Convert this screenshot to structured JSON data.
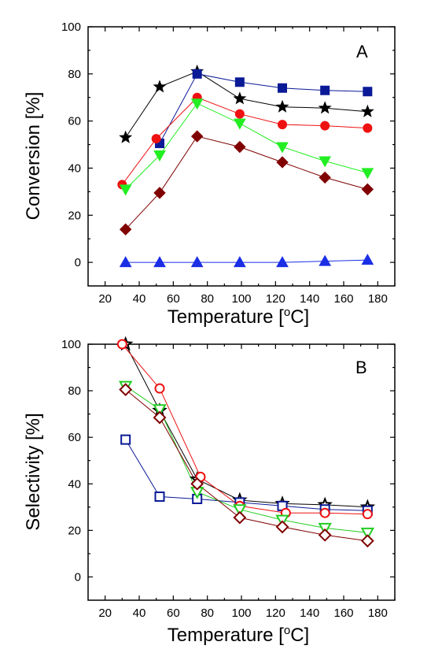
{
  "chart_data": [
    {
      "type": "line",
      "panel_label": "A",
      "xlabel": "Temperature [°C]",
      "xlabel_parts": {
        "pre": "Temperature [",
        "sup": "o",
        "post": "C]"
      },
      "ylabel": "Conversion [%]",
      "xlim": [
        10,
        190
      ],
      "ylim": [
        -10,
        100
      ],
      "xticks": [
        20,
        40,
        60,
        80,
        100,
        120,
        140,
        160,
        180
      ],
      "yticks": [
        0,
        20,
        40,
        60,
        80,
        100
      ],
      "grid": false,
      "series": [
        {
          "marker": "star",
          "color": "#000000",
          "filled": true,
          "points": [
            [
              32,
              53
            ],
            [
              52,
              74.5
            ],
            [
              74,
              81
            ],
            [
              99,
              69.5
            ],
            [
              124,
              66
            ],
            [
              149,
              65.5
            ],
            [
              174,
              64
            ]
          ]
        },
        {
          "marker": "square",
          "color": "#0a1a96",
          "filled": true,
          "points": [
            [
              52,
              50.5
            ],
            [
              74,
              80
            ],
            [
              99,
              76.5
            ],
            [
              124,
              74
            ],
            [
              149,
              73
            ],
            [
              174,
              72.5
            ]
          ]
        },
        {
          "marker": "circle",
          "color": "#ee1111",
          "filled": true,
          "points": [
            [
              30,
              33
            ],
            [
              50,
              52.5
            ],
            [
              74,
              70
            ],
            [
              99,
              63
            ],
            [
              124,
              58.5
            ],
            [
              149,
              58
            ],
            [
              174,
              57
            ]
          ]
        },
        {
          "marker": "triangle-down",
          "color": "#22ee22",
          "filled": true,
          "points": [
            [
              32,
              31
            ],
            [
              52,
              45.5
            ],
            [
              74,
              67.5
            ],
            [
              99,
              59
            ],
            [
              124,
              49
            ],
            [
              149,
              43
            ],
            [
              174,
              38
            ]
          ]
        },
        {
          "marker": "diamond",
          "color": "#800000",
          "filled": true,
          "points": [
            [
              32,
              14
            ],
            [
              52,
              29.5
            ],
            [
              74,
              53.5
            ],
            [
              99,
              49
            ],
            [
              124,
              42.5
            ],
            [
              149,
              36
            ],
            [
              174,
              31
            ]
          ]
        },
        {
          "marker": "triangle-up",
          "color": "#1a2ee6",
          "filled": true,
          "points": [
            [
              32,
              0
            ],
            [
              52,
              0
            ],
            [
              74,
              0
            ],
            [
              99,
              0
            ],
            [
              124,
              0
            ],
            [
              149,
              0.5
            ],
            [
              174,
              1
            ]
          ]
        }
      ]
    },
    {
      "type": "line",
      "panel_label": "B",
      "xlabel": "Temperature [°C]",
      "xlabel_parts": {
        "pre": "Temperature [",
        "sup": "o",
        "post": "C]"
      },
      "ylabel": "Selectivity [%]",
      "xlim": [
        10,
        190
      ],
      "ylim": [
        -10,
        100
      ],
      "xticks": [
        20,
        40,
        60,
        80,
        100,
        120,
        140,
        160,
        180
      ],
      "yticks": [
        0,
        20,
        40,
        60,
        80,
        100
      ],
      "grid": false,
      "series": [
        {
          "marker": "star",
          "color": "#000000",
          "filled": false,
          "points": [
            [
              32,
              100
            ],
            [
              52,
              71.5
            ],
            [
              74,
              42
            ],
            [
              99,
              33
            ],
            [
              124,
              31.5
            ],
            [
              149,
              31
            ],
            [
              174,
              30
            ]
          ]
        },
        {
          "marker": "square",
          "color": "#0a1a96",
          "filled": false,
          "points": [
            [
              32,
              59
            ],
            [
              52,
              34.5
            ],
            [
              74,
              33.5
            ],
            [
              99,
              32
            ],
            [
              124,
              30.5
            ],
            [
              149,
              29
            ],
            [
              174,
              28.5
            ]
          ]
        },
        {
          "marker": "circle",
          "color": "#ee1111",
          "filled": false,
          "points": [
            [
              30,
              100
            ],
            [
              52,
              81
            ],
            [
              76,
              43
            ],
            [
              99,
              30.5
            ],
            [
              126,
              27.5
            ],
            [
              149,
              27.5
            ],
            [
              174,
              27
            ]
          ]
        },
        {
          "marker": "triangle-down",
          "color": "#22cc22",
          "filled": false,
          "points": [
            [
              32,
              82
            ],
            [
              52,
              72
            ],
            [
              74,
              36.5
            ],
            [
              99,
              29
            ],
            [
              124,
              24.5
            ],
            [
              149,
              21
            ],
            [
              174,
              19
            ]
          ]
        },
        {
          "marker": "diamond",
          "color": "#800000",
          "filled": false,
          "points": [
            [
              32,
              80.5
            ],
            [
              52,
              68.5
            ],
            [
              74,
              40
            ],
            [
              99,
              25.5
            ],
            [
              124,
              21.5
            ],
            [
              149,
              18
            ],
            [
              174,
              15.5
            ]
          ]
        }
      ]
    }
  ]
}
